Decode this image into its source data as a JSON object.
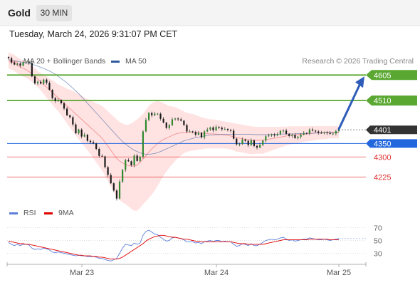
{
  "header": {
    "instrument": "Gold",
    "timeframe": "30 MIN"
  },
  "datetime": "Tuesday, March 24, 2026 9:31:07 PM CET",
  "legend": {
    "bollinger": {
      "label": "MA 20 + Bollinger Bands",
      "color": "#f08080"
    },
    "ma50": {
      "label": "MA 50",
      "color": "#2e5c9e"
    }
  },
  "credit": "Research © 2026 Trading Central",
  "rsi_legend": {
    "rsi": {
      "label": "RSI",
      "color": "#5b7fdb"
    },
    "ma9": {
      "label": "9MA",
      "color": "#e00000"
    }
  },
  "chart_data": [
    {
      "type": "candlestick",
      "instrument": "Gold",
      "x_tick_labels": [
        "Mar 23",
        "Mar 24",
        "Mar 25"
      ],
      "ylim": [
        4115,
        4635
      ],
      "levels": [
        {
          "label": "4605",
          "value": 4605,
          "kind": "resistance",
          "color": "#5aa832"
        },
        {
          "label": "4510",
          "value": 4510,
          "kind": "resistance",
          "color": "#5aa832"
        },
        {
          "label": "4401",
          "value": 4401,
          "kind": "last price",
          "color": "#333333"
        },
        {
          "label": "4350",
          "value": 4350,
          "kind": "pivot",
          "color": "#2266dd"
        },
        {
          "label": "4300",
          "value": 4300,
          "kind": "support",
          "color": "#e03030"
        },
        {
          "label": "4225",
          "value": 4225,
          "kind": "support",
          "color": "#e03030"
        }
      ],
      "projected_target": 4605,
      "close_series": [
        4668,
        4652,
        4644,
        4648,
        4640,
        4652,
        4655,
        4650,
        4600,
        4574,
        4580,
        4573,
        4588,
        4576,
        4550,
        4519,
        4508,
        4512,
        4500,
        4480,
        4455,
        4448,
        4421,
        4388,
        4402,
        4376,
        4383,
        4360,
        4355,
        4350,
        4330,
        4304,
        4302,
        4262,
        4233,
        4202,
        4175,
        4145,
        4208,
        4252,
        4288,
        4284,
        4269,
        4305,
        4285,
        4301,
        4395,
        4438,
        4464,
        4455,
        4461,
        4461,
        4442,
        4428,
        4408,
        4418,
        4440,
        4443,
        4440,
        4435,
        4419,
        4395,
        4395,
        4393,
        4383,
        4390,
        4373,
        4395,
        4402,
        4410,
        4399,
        4412,
        4409,
        4403,
        4404,
        4400,
        4398,
        4368,
        4347,
        4348,
        4365,
        4360,
        4344,
        4362,
        4341,
        4335,
        4345,
        4361,
        4377,
        4380,
        4384,
        4380,
        4385,
        4397,
        4398,
        4386,
        4378,
        4382,
        4370,
        4375,
        4383,
        4389,
        4388,
        4402,
        4398,
        4395,
        4390,
        4389,
        4392,
        4389,
        4386,
        4387,
        4396,
        4401
      ],
      "ma20": [
        4660,
        4655,
        4650,
        4642,
        4635,
        4630,
        4625,
        4618,
        4610,
        4600,
        4590,
        4580,
        4570,
        4560,
        4550,
        4540,
        4530,
        4520,
        4510,
        4500,
        4490,
        4480,
        4470,
        4460,
        4450,
        4440,
        4430,
        4420,
        4410,
        4400,
        4390,
        4380,
        4370,
        4355,
        4340,
        4325,
        4310,
        4295,
        4285,
        4278,
        4272,
        4268,
        4266,
        4266,
        4270,
        4280,
        4292,
        4305,
        4318,
        4330,
        4340,
        4350,
        4358,
        4365,
        4370,
        4375,
        4380,
        4385,
        4388,
        4390,
        4392,
        4392,
        4392,
        4392,
        4390,
        4390,
        4388,
        4388,
        4387,
        4386,
        4386,
        4385,
        4384,
        4383,
        4382,
        4380,
        4378,
        4375,
        4372,
        4370,
        4368,
        4366,
        4364,
        4362,
        4362,
        4362,
        4362,
        4362,
        4364,
        4366,
        4368,
        4370,
        4372,
        4374,
        4376,
        4378,
        4380,
        4381,
        4382,
        4383,
        4384,
        4385,
        4386,
        4387,
        4388,
        4389,
        4390,
        4390,
        4391,
        4391,
        4392,
        4392,
        4392,
        4392
      ],
      "bb_upper": [
        4690,
        4685,
        4680,
        4672,
        4665,
        4660,
        4655,
        4648,
        4640,
        4630,
        4620,
        4612,
        4605,
        4600,
        4592,
        4585,
        4578,
        4570,
        4565,
        4560,
        4555,
        4550,
        4545,
        4540,
        4535,
        4528,
        4522,
        4515,
        4510,
        4505,
        4500,
        4495,
        4490,
        4480,
        4470,
        4460,
        4450,
        4440,
        4430,
        4425,
        4420,
        4420,
        4425,
        4432,
        4440,
        4450,
        4460,
        4475,
        4490,
        4500,
        4505,
        4508,
        4505,
        4500,
        4495,
        4490,
        4488,
        4485,
        4480,
        4475,
        4470,
        4465,
        4462,
        4460,
        4456,
        4452,
        4448,
        4445,
        4442,
        4440,
        4440,
        4438,
        4436,
        4434,
        4432,
        4430,
        4428,
        4426,
        4424,
        4422,
        4420,
        4418,
        4416,
        4414,
        4413,
        4412,
        4412,
        4412,
        4412,
        4412,
        4412,
        4412,
        4412,
        4413,
        4413,
        4413,
        4414,
        4414,
        4414,
        4414,
        4414,
        4414,
        4414,
        4415,
        4415,
        4415,
        4415,
        4415,
        4415,
        4415,
        4415,
        4415,
        4415,
        4415
      ],
      "bb_lower": [
        4630,
        4625,
        4620,
        4612,
        4605,
        4600,
        4595,
        4588,
        4580,
        4570,
        4560,
        4548,
        4535,
        4520,
        4508,
        4495,
        4482,
        4470,
        4455,
        4440,
        4425,
        4410,
        4395,
        4380,
        4365,
        4352,
        4338,
        4325,
        4310,
        4295,
        4280,
        4265,
        4250,
        4230,
        4210,
        4190,
        4170,
        4150,
        4140,
        4130,
        4124,
        4116,
        4107,
        4100,
        4100,
        4110,
        4124,
        4135,
        4146,
        4160,
        4175,
        4192,
        4211,
        4230,
        4245,
        4260,
        4272,
        4285,
        4296,
        4305,
        4314,
        4319,
        4322,
        4324,
        4324,
        4328,
        4328,
        4331,
        4332,
        4332,
        4332,
        4332,
        4332,
        4332,
        4332,
        4330,
        4328,
        4324,
        4320,
        4318,
        4316,
        4314,
        4312,
        4310,
        4311,
        4312,
        4312,
        4312,
        4316,
        4320,
        4324,
        4328,
        4332,
        4335,
        4339,
        4343,
        4346,
        4348,
        4350,
        4352,
        4354,
        4356,
        4358,
        4359,
        4361,
        4363,
        4365,
        4365,
        4367,
        4367,
        4369,
        4369,
        4369,
        4369
      ],
      "ma50": [
        4662,
        4660,
        4658,
        4656,
        4654,
        4652,
        4650,
        4648,
        4645,
        4642,
        4638,
        4634,
        4630,
        4625,
        4620,
        4614,
        4608,
        4600,
        4592,
        4584,
        4576,
        4566,
        4556,
        4546,
        4536,
        4524,
        4512,
        4500,
        4488,
        4476,
        4464,
        4452,
        4440,
        4428,
        4416,
        4404,
        4392,
        4380,
        4368,
        4358,
        4348,
        4340,
        4332,
        4325,
        4320,
        4315,
        4312,
        4310,
        4310,
        4311,
        4313,
        4316,
        4320,
        4325,
        4330,
        4335,
        4340,
        4345,
        4350,
        4355,
        4360,
        4363,
        4366,
        4369,
        4372,
        4374,
        4376,
        4378,
        4380,
        4381,
        4382,
        4383,
        4383,
        4384,
        4384,
        4384,
        4384,
        4384,
        4384,
        4384,
        4384,
        4384,
        4384,
        4384,
        4383,
        4383,
        4383,
        4383,
        4383,
        4383,
        4384,
        4384,
        4384,
        4385,
        4385,
        4385,
        4386,
        4386,
        4386,
        4387,
        4387,
        4387,
        4388,
        4388,
        4388,
        4389,
        4389,
        4389,
        4390,
        4390,
        4390,
        4390,
        4390,
        4391
      ]
    },
    {
      "type": "line",
      "title": "RSI",
      "ylim": [
        15,
        85
      ],
      "y_ticks": [
        70,
        50,
        30
      ],
      "x_tick_labels": [
        "Mar 23",
        "Mar 24",
        "Mar 25"
      ],
      "series": [
        {
          "name": "RSI",
          "values": [
            47,
            44,
            42,
            44,
            42,
            44,
            44,
            43,
            38,
            36,
            37,
            36,
            38,
            37,
            35,
            32,
            31,
            32,
            31,
            30,
            29,
            28,
            27,
            26,
            27,
            26,
            26,
            25,
            25,
            25,
            24,
            22,
            22,
            20,
            19,
            18,
            20,
            22,
            30,
            38,
            44,
            43,
            42,
            46,
            44,
            46,
            58,
            64,
            66,
            63,
            60,
            59,
            55,
            52,
            49,
            50,
            54,
            55,
            54,
            53,
            51,
            48,
            48,
            48,
            46,
            47,
            45,
            48,
            49,
            50,
            48,
            50,
            50,
            48,
            49,
            48,
            48,
            44,
            41,
            42,
            45,
            44,
            42,
            45,
            42,
            42,
            44,
            47,
            50,
            51,
            52,
            51,
            52,
            54,
            55,
            52,
            50,
            51,
            49,
            50,
            51,
            52,
            52,
            54,
            53,
            52,
            51,
            51,
            52,
            51,
            50,
            51,
            52,
            53
          ]
        },
        {
          "name": "9MA",
          "values": [
            49,
            48,
            47,
            46,
            45,
            45,
            44,
            44,
            43,
            42,
            41,
            40,
            39,
            38,
            37,
            36,
            35,
            34,
            33,
            32,
            31,
            30,
            29,
            28,
            27,
            27,
            26,
            26,
            26,
            25,
            25,
            24,
            24,
            23,
            22,
            21,
            21,
            21,
            22,
            24,
            27,
            30,
            33,
            36,
            39,
            42,
            45,
            49,
            52,
            54,
            56,
            57,
            58,
            58,
            57,
            56,
            55,
            55,
            54,
            53,
            52,
            52,
            51,
            50,
            49,
            49,
            48,
            48,
            48,
            48,
            48,
            48,
            48,
            48,
            48,
            48,
            48,
            47,
            46,
            45,
            45,
            45,
            44,
            44,
            44,
            44,
            44,
            44,
            45,
            46,
            47,
            48,
            49,
            50,
            51,
            51,
            51,
            51,
            51,
            51,
            51,
            51,
            51,
            52,
            52,
            52,
            52,
            52,
            52,
            52,
            51,
            51,
            51,
            51
          ]
        }
      ]
    }
  ]
}
